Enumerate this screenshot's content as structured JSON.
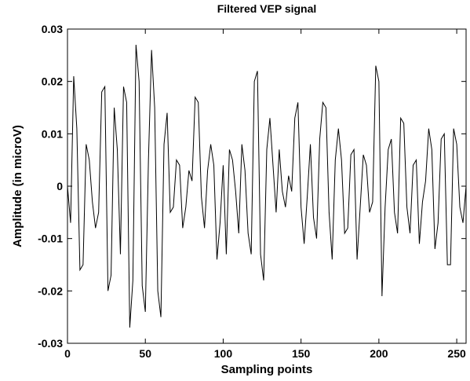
{
  "chart_data": {
    "type": "line",
    "title": "Filtered VEP signal",
    "xlabel": "Sampling points",
    "ylabel": "Amplitude (in microV)",
    "xlim": [
      0,
      256
    ],
    "ylim": [
      -0.03,
      0.03
    ],
    "xticks": [
      0,
      50,
      100,
      150,
      200,
      250
    ],
    "yticks": [
      -0.03,
      -0.02,
      -0.01,
      0,
      0.01,
      0.02,
      0.03
    ],
    "xtick_labels": [
      "0",
      "50",
      "100",
      "150",
      "200",
      "250"
    ],
    "ytick_labels": [
      "-0.03",
      "-0.02",
      "-0.01",
      "0",
      "0.01",
      "0.02",
      "0.03"
    ],
    "grid": false,
    "line_color": "#000000",
    "series": [
      {
        "x": [
          0,
          2,
          4,
          6,
          8,
          10,
          12,
          14,
          16,
          18,
          20,
          22,
          24,
          26,
          28,
          30,
          32,
          34,
          36,
          38,
          40,
          42,
          44,
          46,
          48,
          50,
          52,
          54,
          56,
          58,
          60,
          62,
          64,
          66,
          68,
          70,
          72,
          74,
          76,
          78,
          80,
          82,
          84,
          86,
          88,
          90,
          92,
          94,
          96,
          98,
          100,
          102,
          104,
          106,
          108,
          110,
          112,
          114,
          116,
          118,
          120,
          122,
          124,
          126,
          128,
          130,
          132,
          134,
          136,
          138,
          140,
          142,
          144,
          146,
          148,
          150,
          152,
          154,
          156,
          158,
          160,
          162,
          164,
          166,
          168,
          170,
          172,
          174,
          176,
          178,
          180,
          182,
          184,
          186,
          188,
          190,
          192,
          194,
          196,
          198,
          200,
          202,
          204,
          206,
          208,
          210,
          212,
          214,
          216,
          218,
          220,
          222,
          224,
          226,
          228,
          230,
          232,
          234,
          236,
          238,
          240,
          242,
          244,
          246,
          248,
          250,
          252,
          254,
          256
        ],
        "values": [
          0.0,
          -0.007,
          0.021,
          0.011,
          -0.016,
          -0.015,
          0.008,
          0.005,
          -0.003,
          -0.008,
          -0.005,
          0.018,
          0.019,
          -0.02,
          -0.017,
          0.015,
          0.007,
          -0.013,
          0.019,
          0.016,
          -0.027,
          -0.018,
          0.027,
          0.02,
          -0.019,
          -0.024,
          0.005,
          0.026,
          0.015,
          -0.02,
          -0.025,
          0.008,
          0.014,
          -0.005,
          -0.004,
          0.005,
          0.004,
          -0.008,
          -0.004,
          0.003,
          0.001,
          0.017,
          0.016,
          -0.002,
          -0.008,
          0.003,
          0.008,
          0.004,
          -0.014,
          -0.007,
          0.004,
          -0.013,
          0.007,
          0.005,
          -0.001,
          -0.009,
          0.008,
          0.003,
          -0.009,
          -0.013,
          0.02,
          0.022,
          -0.013,
          -0.018,
          0.007,
          0.013,
          0.004,
          -0.005,
          0.007,
          -0.001,
          -0.004,
          0.002,
          -0.001,
          0.013,
          0.016,
          -0.004,
          -0.011,
          -0.002,
          0.008,
          -0.006,
          -0.01,
          0.009,
          0.016,
          0.015,
          -0.005,
          -0.014,
          0.005,
          0.011,
          0.005,
          -0.009,
          -0.008,
          0.006,
          0.007,
          -0.014,
          -0.004,
          0.006,
          0.004,
          -0.005,
          -0.003,
          0.023,
          0.02,
          -0.021,
          -0.004,
          0.007,
          0.009,
          -0.005,
          -0.009,
          0.013,
          0.012,
          -0.004,
          -0.009,
          0.004,
          0.005,
          -0.011,
          -0.003,
          0.001,
          0.011,
          0.007,
          -0.012,
          -0.007,
          0.009,
          0.01,
          -0.015,
          -0.015,
          0.011,
          0.008,
          -0.004,
          -0.007,
          0.0
        ]
      }
    ]
  }
}
